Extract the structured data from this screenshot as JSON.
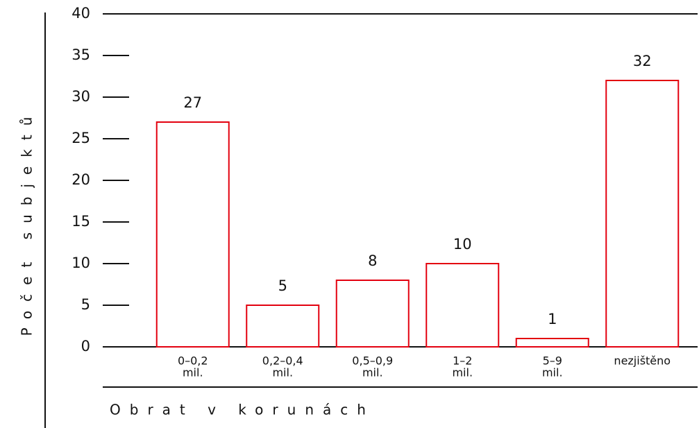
{
  "chart_data": {
    "type": "bar",
    "y_label": "Počet subjektů",
    "x_label": "Obrat v korunách",
    "categories": [
      [
        "0–0,2",
        "mil."
      ],
      [
        "0,2–0,4",
        "mil."
      ],
      [
        "0,5–0,9",
        "mil."
      ],
      [
        "1–2",
        "mil."
      ],
      [
        "5–9",
        "mil."
      ],
      [
        "nezjištěno"
      ]
    ],
    "values": [
      27,
      5,
      8,
      10,
      1,
      32
    ],
    "color": "#e3000f",
    "ylim": [
      0,
      40
    ],
    "yticks": [
      0,
      5,
      10,
      15,
      20,
      25,
      30,
      35,
      40
    ],
    "grid": false
  }
}
